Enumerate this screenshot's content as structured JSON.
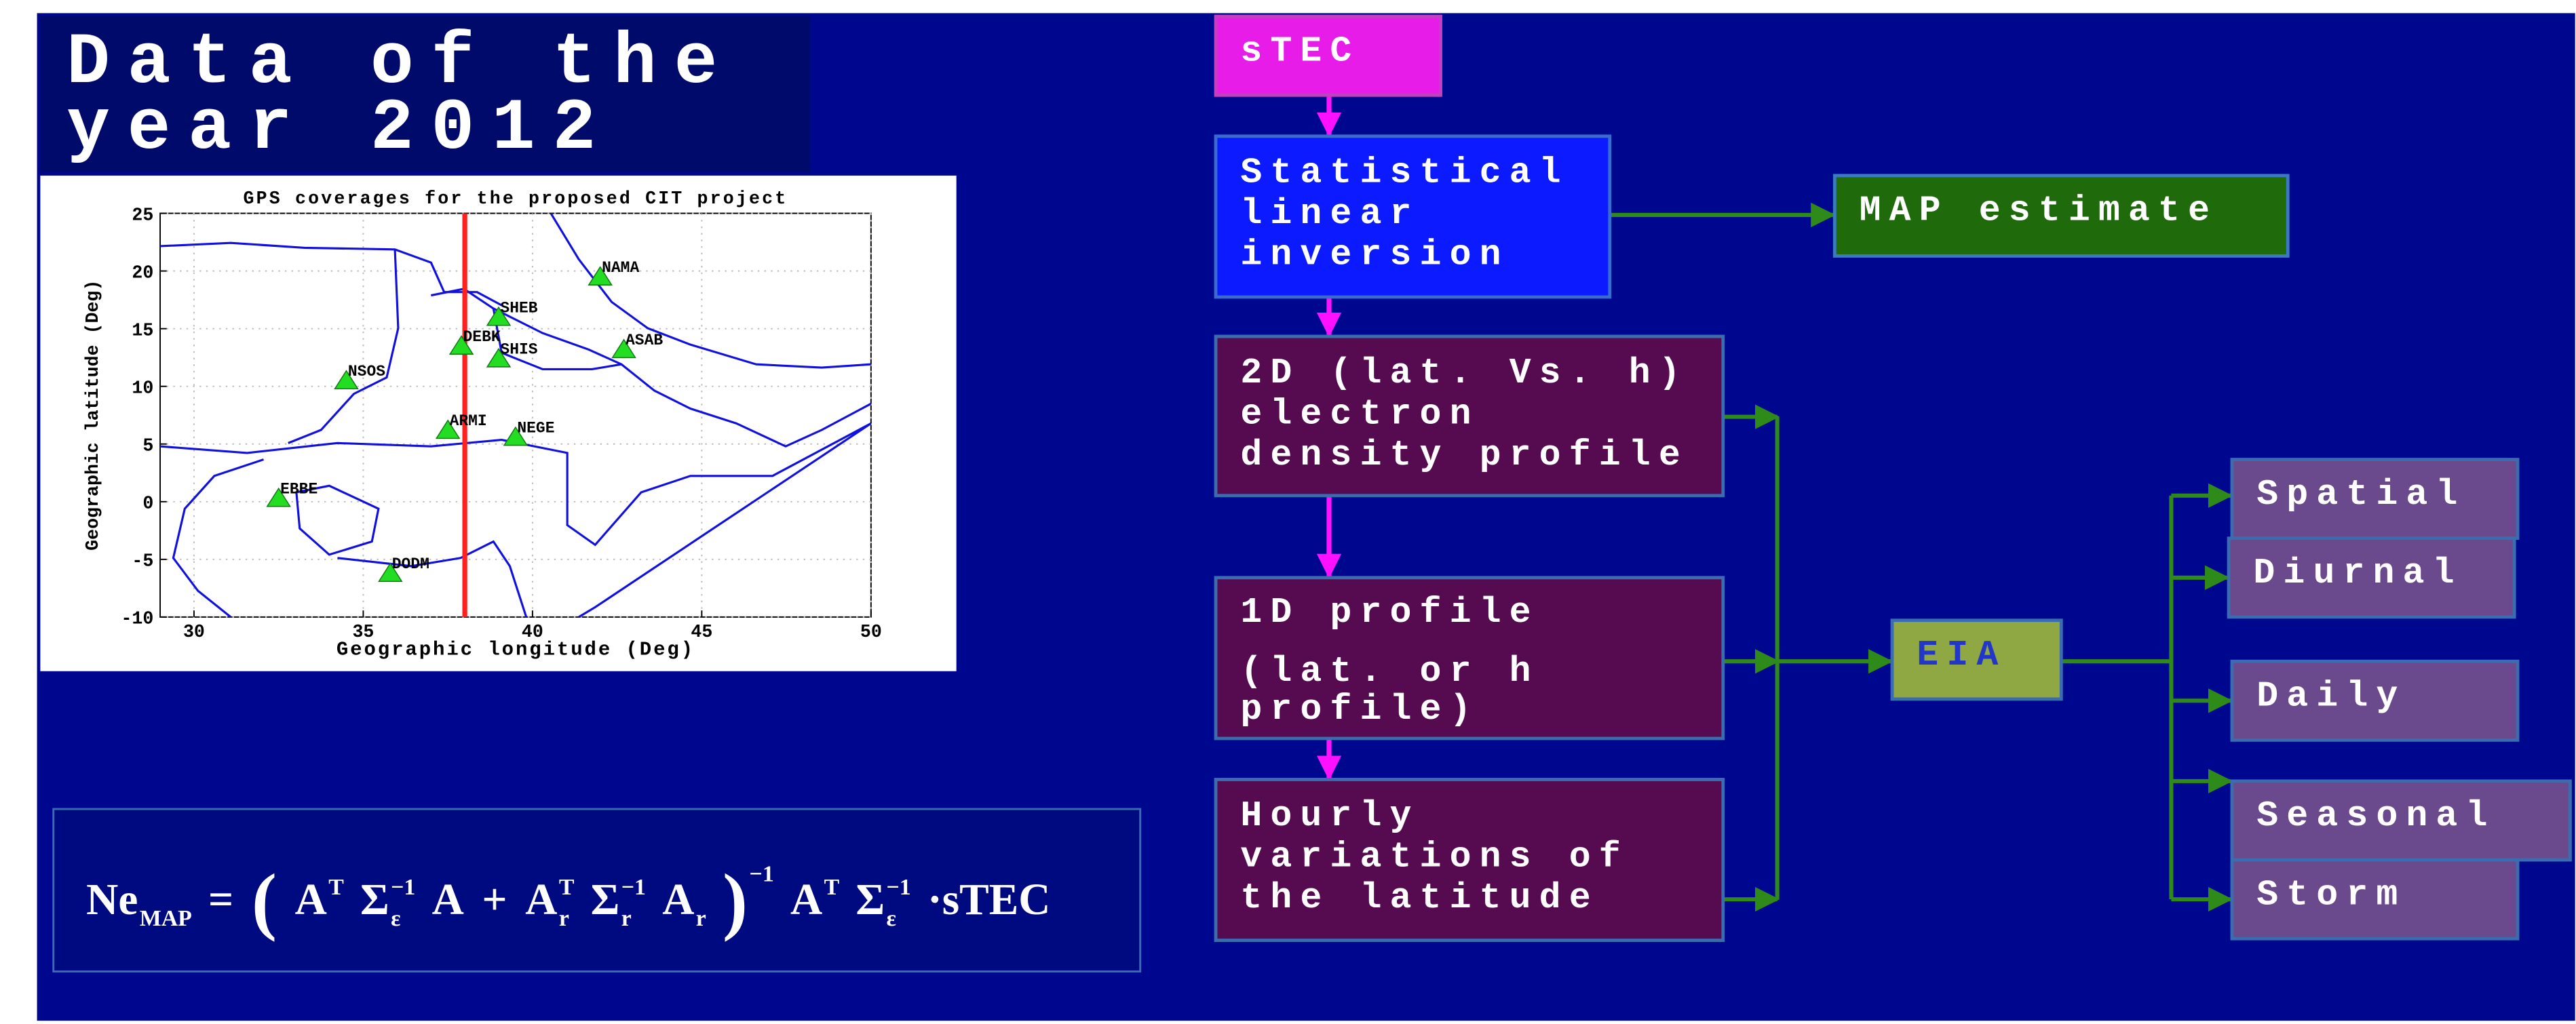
{
  "title_lines": [
    "Data of the",
    "year 2012"
  ],
  "map": {
    "title": "GPS coverages for the proposed CIT project",
    "xlabel": "Geographic longitude (Deg)",
    "ylabel": "Geographic latitude (Deg)",
    "xlim": [
      29,
      50
    ],
    "ylim": [
      -10,
      25
    ],
    "xticks": [
      30,
      35,
      40,
      45,
      50
    ],
    "yticks": [
      -10,
      -5,
      0,
      5,
      10,
      15,
      20,
      25
    ],
    "grid": true,
    "meridian": 38,
    "meridian_color": "#ff2020",
    "station_color": "#22dd22",
    "stations": [
      {
        "name": "NAMA",
        "lon": 42,
        "lat": 19.5
      },
      {
        "name": "SHEB",
        "lon": 39,
        "lat": 16
      },
      {
        "name": "DEBK",
        "lon": 37.9,
        "lat": 13.5
      },
      {
        "name": "SHIS",
        "lon": 39,
        "lat": 12.4
      },
      {
        "name": "ASAB",
        "lon": 42.7,
        "lat": 13.2
      },
      {
        "name": "NSOS",
        "lon": 34.5,
        "lat": 10.5
      },
      {
        "name": "ARMI",
        "lon": 37.5,
        "lat": 6.2
      },
      {
        "name": "NEGE",
        "lon": 39.5,
        "lat": 5.6
      },
      {
        "name": "EBBE",
        "lon": 32.5,
        "lat": 0.3
      },
      {
        "name": "DODM",
        "lon": 35.8,
        "lat": -6.2
      }
    ]
  },
  "formula": [
    {
      "text": "Ne",
      "sub": "MAP"
    },
    {
      "text": "="
    },
    {
      "text": "("
    },
    {
      "text": "A",
      "sup": "T"
    },
    {
      "text": "Σ",
      "sub": "ε",
      "sup": "−1"
    },
    {
      "text": "A"
    },
    {
      "text": "+"
    },
    {
      "text": "A",
      "sub": "r",
      "sup": "T"
    },
    {
      "text": "Σ",
      "sub": "r",
      "sup": "−1"
    },
    {
      "text": "A",
      "sub": "r"
    },
    {
      "text": ")",
      "sup": "−1"
    },
    {
      "text": "A",
      "sup": "T"
    },
    {
      "text": "Σ",
      "sub": "ε",
      "sup": "−1"
    },
    {
      "text": "·sTEC"
    }
  ],
  "flow": {
    "nodes": [
      {
        "lines": [
          "sTEC"
        ]
      },
      {
        "lines": [
          "Statistical",
          "linear",
          "inversion"
        ]
      },
      {
        "lines": [
          "MAP estimate"
        ]
      },
      {
        "lines": [
          "2D (lat. Vs. h)",
          "electron",
          "density profile"
        ]
      },
      {
        "lines": [
          "1D profile",
          "(lat. or h",
          "profile)"
        ]
      },
      {
        "lines": [
          "Hourly",
          "variations of",
          "the latitude"
        ]
      },
      {
        "lines": [
          "EIA"
        ]
      },
      {
        "lines": [
          "Spatial"
        ]
      },
      {
        "lines": [
          "Diurnal"
        ]
      },
      {
        "lines": [
          "Daily"
        ]
      },
      {
        "lines": [
          "Seasonal"
        ]
      },
      {
        "lines": [
          "Storm"
        ]
      }
    ]
  }
}
